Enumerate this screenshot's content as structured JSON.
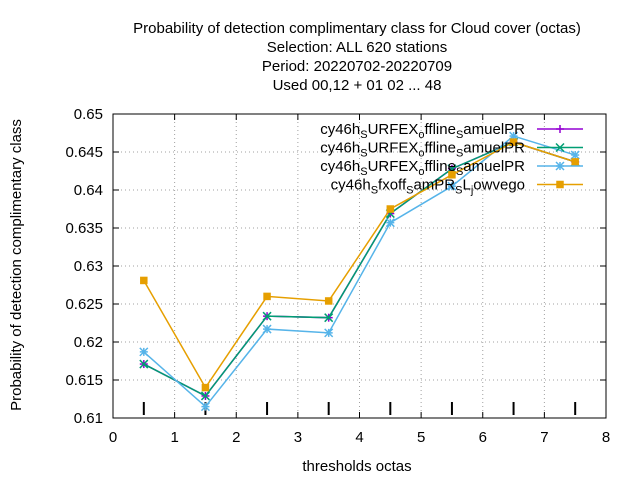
{
  "chart_data": {
    "type": "line",
    "title_lines": [
      "Probability of detection complimentary class  for Cloud cover (octas)",
      "Selection: ALL    620 stations",
      "Period: 20220702-20220709",
      "Used  00,12  + 01 02 ... 48"
    ],
    "xlabel": "thresholds octas",
    "ylabel": "Probability of detection complimentary class",
    "xlim": [
      0,
      8
    ],
    "ylim": [
      0.61,
      0.65
    ],
    "xticks": [
      0,
      1,
      2,
      3,
      4,
      5,
      6,
      7,
      8
    ],
    "yticks": [
      0.61,
      0.615,
      0.62,
      0.625,
      0.63,
      0.635,
      0.64,
      0.645,
      0.65
    ],
    "grid": true,
    "legend_position": "top-right",
    "x": [
      0.5,
      1.5,
      2.5,
      3.5,
      4.5,
      5.5,
      6.5,
      7.5
    ],
    "series": [
      {
        "legend": [
          [
            "cy46h",
            ""
          ],
          [
            "S",
            "sub"
          ],
          [
            "URFEX",
            ""
          ],
          [
            "o",
            "sub"
          ],
          [
            "ffline",
            ""
          ],
          [
            "S",
            "sub"
          ],
          [
            "amuelPR",
            ""
          ]
        ],
        "color": "#9400d3",
        "marker": "plus",
        "values": [
          0.6171,
          0.6129,
          0.6234,
          0.6232,
          0.6369,
          0.6428,
          0.6463,
          0.6437
        ]
      },
      {
        "legend": [
          [
            "cy46h",
            ""
          ],
          [
            "S",
            "sub"
          ],
          [
            "URFEX",
            ""
          ],
          [
            "o",
            "sub"
          ],
          [
            "ffline",
            ""
          ],
          [
            "S",
            "sub"
          ],
          [
            "amuelPR",
            ""
          ]
        ],
        "color": "#009e73",
        "marker": "cross",
        "values": [
          0.6171,
          0.6129,
          0.6234,
          0.6232,
          0.6369,
          0.6428,
          0.6463,
          0.6437
        ]
      },
      {
        "legend": [
          [
            "cy46h",
            ""
          ],
          [
            "S",
            "sub"
          ],
          [
            "URFEX",
            ""
          ],
          [
            "o",
            "sub"
          ],
          [
            "ffline",
            ""
          ],
          [
            "S",
            "sub"
          ],
          [
            "amuelPR",
            ""
          ]
        ],
        "color": "#56b4e9",
        "marker": "star",
        "values": [
          0.6187,
          0.6115,
          0.6217,
          0.6212,
          0.6357,
          0.6405,
          0.6471,
          0.6446
        ]
      },
      {
        "legend": [
          [
            "cy46h",
            ""
          ],
          [
            "S",
            "sub"
          ],
          [
            "fxoff",
            ""
          ],
          [
            "S",
            "sub"
          ],
          [
            "amPR",
            ""
          ],
          [
            "S",
            "sub"
          ],
          [
            "L",
            ""
          ],
          [
            "j",
            "sub"
          ],
          [
            "owvego",
            ""
          ]
        ],
        "color": "#e69f00",
        "marker": "box",
        "values": [
          0.6281,
          0.614,
          0.626,
          0.6254,
          0.6375,
          0.642,
          0.6463,
          0.6437
        ]
      }
    ]
  }
}
